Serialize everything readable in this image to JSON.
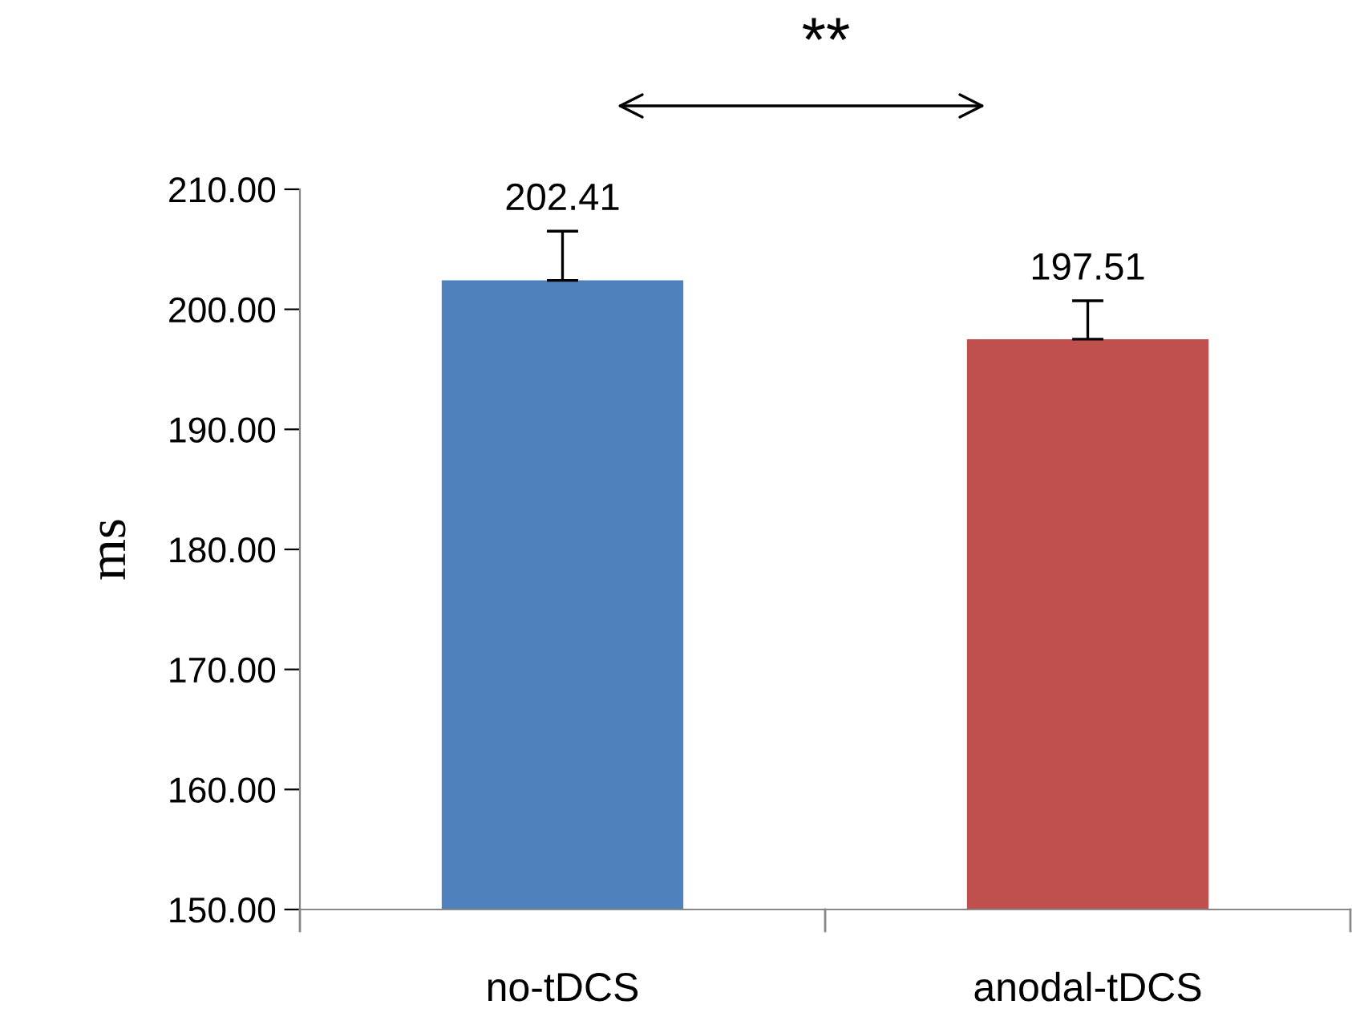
{
  "chart_data": {
    "type": "bar",
    "ylabel": "ms",
    "categories": [
      "no-tDCS",
      "anodal-tDCS"
    ],
    "values": [
      202.41,
      197.51
    ],
    "colors": [
      "#4f81bd",
      "#c0504d"
    ],
    "errors": [
      4.1,
      3.2
    ],
    "data_labels": true,
    "ylim": [
      150,
      210
    ],
    "yticks": [
      {
        "value": 150,
        "label": "150.00"
      },
      {
        "value": 160,
        "label": "160.00"
      },
      {
        "value": 170,
        "label": "170.00"
      },
      {
        "value": 180,
        "label": "180.00"
      },
      {
        "value": 190,
        "label": "190.00"
      },
      {
        "value": 200,
        "label": "200.00"
      },
      {
        "value": 210,
        "label": "210.00"
      }
    ],
    "annotations": [
      "**"
    ],
    "grid": false,
    "legend": false
  }
}
